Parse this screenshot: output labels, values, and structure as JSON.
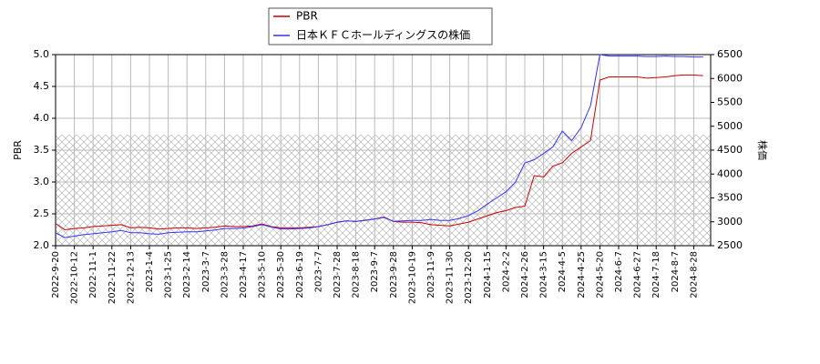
{
  "chart_data": {
    "type": "line",
    "y_label": "PBR",
    "y2_label": "株価",
    "categories": [
      "2022-9-20",
      null,
      "2022-10-12",
      null,
      "2022-11-1",
      null,
      "2022-11-22",
      null,
      "2022-12-13",
      null,
      "2023-1-4",
      null,
      "2023-1-25",
      null,
      "2023-2-14",
      null,
      "2023-3-7",
      null,
      "2023-3-28",
      null,
      "2023-4-17",
      null,
      "2023-5-10",
      null,
      "2023-5-30",
      null,
      "2023-6-19",
      null,
      "2023-7-7",
      null,
      "2023-7-28",
      null,
      "2023-8-18",
      null,
      "2023-9-7",
      null,
      "2023-9-28",
      null,
      "2023-10-19",
      null,
      "2023-11-9",
      null,
      "2023-11-30",
      null,
      "2023-12-20",
      null,
      "2024-1-15",
      null,
      "2024-2-2",
      null,
      "2024-2-26",
      null,
      "2024-3-15",
      null,
      "2024-4-5",
      null,
      "2024-4-25",
      null,
      "2024-5-20",
      null,
      "2024-6-7",
      null,
      "2024-6-27",
      null,
      "2024-7-18",
      null,
      "2024-8-7",
      null,
      "2024-8-28",
      null
    ],
    "series": [
      {
        "name": "PBR",
        "color": "#cc0000",
        "values": [
          2.35,
          2.25,
          2.27,
          2.28,
          2.3,
          2.31,
          2.32,
          2.33,
          2.28,
          2.29,
          2.28,
          2.26,
          2.27,
          2.28,
          2.28,
          2.27,
          2.28,
          2.29,
          2.31,
          2.3,
          2.3,
          2.31,
          2.34,
          2.3,
          2.28,
          2.28,
          2.28,
          2.29,
          2.3,
          2.33,
          2.37,
          2.39,
          2.38,
          2.4,
          2.42,
          2.45,
          2.38,
          2.37,
          2.37,
          2.36,
          2.33,
          2.32,
          2.31,
          2.34,
          2.37,
          2.42,
          2.47,
          2.52,
          2.55,
          2.6,
          2.62,
          3.1,
          3.08,
          3.25,
          3.3,
          3.45,
          3.55,
          3.65,
          4.6,
          4.65,
          4.65,
          4.65,
          4.65,
          4.63,
          4.64,
          4.65,
          4.67,
          4.68,
          4.68,
          4.67
        ]
      },
      {
        "name": "日本ＫＦＣホールディングスの株価",
        "color": "#3333ff",
        "axis": "y2",
        "values": [
          2770,
          2670,
          2700,
          2730,
          2750,
          2770,
          2790,
          2820,
          2770,
          2770,
          2750,
          2740,
          2770,
          2780,
          2790,
          2790,
          2810,
          2830,
          2860,
          2860,
          2870,
          2900,
          2940,
          2890,
          2850,
          2850,
          2860,
          2870,
          2900,
          2940,
          2990,
          3020,
          3010,
          3030,
          3060,
          3090,
          3010,
          3020,
          3030,
          3030,
          3050,
          3030,
          3030,
          3070,
          3130,
          3230,
          3370,
          3500,
          3630,
          3830,
          4230,
          4300,
          4430,
          4570,
          4900,
          4700,
          4970,
          5430,
          6500,
          6470,
          6470,
          6470,
          6470,
          6460,
          6460,
          6470,
          6460,
          6460,
          6450,
          6450
        ]
      }
    ],
    "ylim": [
      2,
      5
    ],
    "yticks": [
      {
        "value": 2,
        "label": "2.0"
      },
      2.5,
      {
        "value": 3,
        "label": "3.0"
      },
      3.5,
      {
        "value": 4,
        "label": "4.0"
      },
      4.5,
      {
        "value": 5,
        "label": "5.0"
      }
    ],
    "y2lim": [
      2500,
      6500
    ],
    "y2ticks": [
      2500,
      3000,
      3500,
      4000,
      4500,
      5000,
      5500,
      6000,
      6500
    ],
    "grid": true,
    "legend": "top"
  }
}
